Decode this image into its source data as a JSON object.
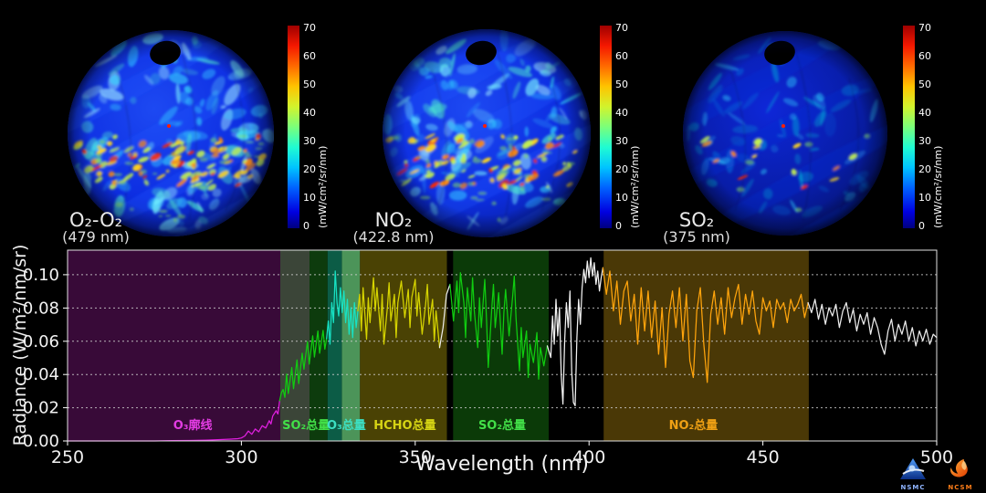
{
  "page": {
    "background": "#000000"
  },
  "globes": [
    {
      "label": "O₂-O₂",
      "sublabel": "(479 nm)",
      "seed": 7,
      "activity": 1.0
    },
    {
      "label": "NO₂",
      "sublabel": "(422.8 nm)",
      "seed": 13,
      "activity": 0.85
    },
    {
      "label": "SO₂",
      "sublabel": "(375 nm)",
      "seed": 21,
      "activity": 0.15
    }
  ],
  "colorbar": {
    "unit": "(mW/cm²/sr/nm)",
    "min": 0,
    "max": 70,
    "ticks": [
      "0",
      "10",
      "20",
      "30",
      "40",
      "50",
      "60",
      "70"
    ],
    "colormap": "jet"
  },
  "chart_data": {
    "type": "line",
    "title": "",
    "xlabel": "Wavelength (nm)",
    "ylabel": "Radiance (W/m²/nm/sr)",
    "xlim": [
      250,
      500
    ],
    "ylim": [
      0,
      0.1148
    ],
    "xticks": [
      250,
      300,
      350,
      400,
      450,
      500
    ],
    "ytick_values": [
      0,
      0.02,
      0.04,
      0.06,
      0.08,
      0.1
    ],
    "ytick_labels": [
      "0.00",
      "0.02",
      "0.04",
      "0.06",
      "0.08",
      "0.10"
    ],
    "grid": "horizontal-dashed",
    "legend": "none",
    "bands": [
      {
        "from": 250,
        "to": 311.2,
        "color": "#380a38",
        "label": "O₃廓线",
        "label_color": "#e23ce2",
        "label_at": 286
      },
      {
        "from": 311.2,
        "to": 319.6,
        "color": "#3b4538",
        "label": "SO₂总量",
        "label_color": "#42df48",
        "label_at": 318.6
      },
      {
        "from": 319.6,
        "to": 324.8,
        "color": "#0d3b0d",
        "label": "",
        "label_color": "",
        "label_at": 0
      },
      {
        "from": 324.8,
        "to": 328.9,
        "color": "#0c5c46",
        "label": "O₃总量",
        "label_color": "#3cdfc2",
        "label_at": 330.2
      },
      {
        "from": 328.9,
        "to": 334.1,
        "color": "#4c9459",
        "label": "",
        "label_color": "",
        "label_at": 0
      },
      {
        "from": 334.1,
        "to": 359.1,
        "color": "#4a4204",
        "label": "HCHO总量",
        "label_color": "#d6d414",
        "label_at": 347
      },
      {
        "from": 360.9,
        "to": 388.4,
        "color": "#0b3a08",
        "label": "SO₂总量",
        "label_color": "#42df48",
        "label_at": 375
      },
      {
        "from": 404.2,
        "to": 463.2,
        "color": "#4a3806",
        "label": "NO₂总量",
        "label_color": "#efa014",
        "label_at": 430
      }
    ],
    "line_segments": [
      {
        "to": 311.2,
        "color": "#e020e0"
      },
      {
        "to": 324.6,
        "color": "#10cc10"
      },
      {
        "to": 333.7,
        "color": "#17e2c4"
      },
      {
        "to": 357.5,
        "color": "#d6d400"
      },
      {
        "to": 360.6,
        "color": "#ececec"
      },
      {
        "to": 388.4,
        "color": "#10cc10"
      },
      {
        "to": 404.0,
        "color": "#f2f2f2"
      },
      {
        "to": 463.2,
        "color": "#ffa40c"
      },
      {
        "to": 500.0,
        "color": "#ececec"
      }
    ],
    "points": [
      [
        250,
        0
      ],
      [
        255,
        0
      ],
      [
        260,
        0
      ],
      [
        265,
        0
      ],
      [
        270,
        0
      ],
      [
        275,
        0
      ],
      [
        280,
        0.0002
      ],
      [
        285,
        0.0003
      ],
      [
        290,
        0.0005
      ],
      [
        294,
        0.0008
      ],
      [
        297,
        0.0011
      ],
      [
        299,
        0.0014
      ],
      [
        300,
        0.0018
      ],
      [
        301,
        0.003
      ],
      [
        302,
        0.006
      ],
      [
        303,
        0.004
      ],
      [
        304,
        0.0072
      ],
      [
        305,
        0.0055
      ],
      [
        306,
        0.0092
      ],
      [
        307,
        0.0078
      ],
      [
        308,
        0.0122
      ],
      [
        308.5,
        0.0102
      ],
      [
        309,
        0.015
      ],
      [
        310,
        0.0182
      ],
      [
        310.5,
        0.0162
      ],
      [
        311,
        0.0242
      ],
      [
        311.5,
        0.029
      ],
      [
        312,
        0.031
      ],
      [
        312.5,
        0.0262
      ],
      [
        313,
        0.0402
      ],
      [
        313.5,
        0.0285
      ],
      [
        314.5,
        0.0442
      ],
      [
        315,
        0.0315
      ],
      [
        316,
        0.0488
      ],
      [
        316.5,
        0.0345
      ],
      [
        317.5,
        0.0528
      ],
      [
        318,
        0.0432
      ],
      [
        319,
        0.0598
      ],
      [
        319.5,
        0.0462
      ],
      [
        320.5,
        0.0632
      ],
      [
        321,
        0.0505
      ],
      [
        322,
        0.0662
      ],
      [
        322.5,
        0.0528
      ],
      [
        323.5,
        0.0665
      ],
      [
        324,
        0.0552
      ],
      [
        324.5,
        0.0615
      ],
      [
        325,
        0.0722
      ],
      [
        325.5,
        0.0582
      ],
      [
        326,
        0.0832
      ],
      [
        326.5,
        0.0712
      ],
      [
        327,
        0.1022
      ],
      [
        327.5,
        0.0835
      ],
      [
        328,
        0.0752
      ],
      [
        328.5,
        0.0922
      ],
      [
        329,
        0.0772
      ],
      [
        329.5,
        0.0902
      ],
      [
        330,
        0.0712
      ],
      [
        330.5,
        0.0852
      ],
      [
        331,
        0.0642
      ],
      [
        331.5,
        0.0802
      ],
      [
        332,
        0.0622
      ],
      [
        332.5,
        0.0832
      ],
      [
        333,
        0.0682
      ],
      [
        333.5,
        0.0782
      ],
      [
        334,
        0.0882
      ],
      [
        334.5,
        0.0662
      ],
      [
        335,
        0.0922
      ],
      [
        336,
        0.0612
      ],
      [
        336.5,
        0.0862
      ],
      [
        337,
        0.0712
      ],
      [
        338,
        0.0982
      ],
      [
        338.5,
        0.0782
      ],
      [
        339,
        0.0922
      ],
      [
        340,
        0.0662
      ],
      [
        340.5,
        0.0882
      ],
      [
        341,
        0.0582
      ],
      [
        342,
        0.0802
      ],
      [
        342.5,
        0.0952
      ],
      [
        343,
        0.0722
      ],
      [
        344,
        0.0882
      ],
      [
        344.5,
        0.0622
      ],
      [
        345,
        0.0832
      ],
      [
        346,
        0.0962
      ],
      [
        347,
        0.0742
      ],
      [
        348,
        0.0912
      ],
      [
        348.5,
        0.0682
      ],
      [
        349,
        0.0862
      ],
      [
        350,
        0.0972
      ],
      [
        350.5,
        0.0752
      ],
      [
        351,
        0.0892
      ],
      [
        352,
        0.0642
      ],
      [
        353,
        0.0822
      ],
      [
        353.5,
        0.0942
      ],
      [
        354,
        0.0702
      ],
      [
        355,
        0.0852
      ],
      [
        355.5,
        0.0602
      ],
      [
        356,
        0.0782
      ],
      [
        357,
        0.0562
      ],
      [
        358,
        0.0682
      ],
      [
        359,
        0.0882
      ],
      [
        360,
        0.0942
      ],
      [
        361,
        0.0722
      ],
      [
        362,
        0.0962
      ],
      [
        362.5,
        0.0772
      ],
      [
        363,
        0.1012
      ],
      [
        364,
        0.0832
      ],
      [
        364.5,
        0.0622
      ],
      [
        365,
        0.0922
      ],
      [
        366,
        0.0722
      ],
      [
        366.5,
        0.0982
      ],
      [
        367,
        0.0782
      ],
      [
        368,
        0.0562
      ],
      [
        368.5,
        0.0862
      ],
      [
        369,
        0.0682
      ],
      [
        370,
        0.0972
      ],
      [
        370.5,
        0.0732
      ],
      [
        371,
        0.0442
      ],
      [
        372,
        0.0792
      ],
      [
        372.5,
        0.0942
      ],
      [
        373,
        0.0682
      ],
      [
        374,
        0.0892
      ],
      [
        375,
        0.0522
      ],
      [
        375.5,
        0.0772
      ],
      [
        376,
        0.0912
      ],
      [
        377,
        0.0632
      ],
      [
        378,
        0.0862
      ],
      [
        378.5,
        0.0992
      ],
      [
        379,
        0.0742
      ],
      [
        380,
        0.0422
      ],
      [
        380.5,
        0.0682
      ],
      [
        381,
        0.0502
      ],
      [
        382,
        0.0662
      ],
      [
        382.5,
        0.0382
      ],
      [
        383,
        0.0582
      ],
      [
        384,
        0.0472
      ],
      [
        385,
        0.0652
      ],
      [
        385.5,
        0.0372
      ],
      [
        386,
        0.0562
      ],
      [
        387,
        0.0452
      ],
      [
        388,
        0.0572
      ],
      [
        389,
        0.0502
      ],
      [
        389.5,
        0.0752
      ],
      [
        390,
        0.0582
      ],
      [
        390.5,
        0.0852
      ],
      [
        391,
        0.0632
      ],
      [
        391.5,
        0.0802
      ],
      [
        392,
        0.0402
      ],
      [
        392.5,
        0.0222
      ],
      [
        393,
        0.0602
      ],
      [
        393.5,
        0.0832
      ],
      [
        394,
        0.0682
      ],
      [
        394.5,
        0.0902
      ],
      [
        395,
        0.0422
      ],
      [
        395.5,
        0.0232
      ],
      [
        396,
        0.0212
      ],
      [
        396.5,
        0.0622
      ],
      [
        397,
        0.0852
      ],
      [
        397.5,
        0.0702
      ],
      [
        398,
        0.0922
      ],
      [
        398.5,
        0.1032
      ],
      [
        399,
        0.0952
      ],
      [
        399.5,
        0.1082
      ],
      [
        400,
        0.0982
      ],
      [
        400.5,
        0.1102
      ],
      [
        401,
        0.0992
      ],
      [
        401.5,
        0.1072
      ],
      [
        402,
        0.0942
      ],
      [
        402.5,
        0.1022
      ],
      [
        403,
        0.0902
      ],
      [
        403.5,
        0.0982
      ],
      [
        404,
        0.1042
      ],
      [
        405,
        0.0882
      ],
      [
        406,
        0.1022
      ],
      [
        407,
        0.0782
      ],
      [
        408,
        0.0962
      ],
      [
        409,
        0.0702
      ],
      [
        410,
        0.0902
      ],
      [
        411,
        0.0962
      ],
      [
        412,
        0.0722
      ],
      [
        413,
        0.0882
      ],
      [
        414,
        0.0582
      ],
      [
        415,
        0.0922
      ],
      [
        416,
        0.0662
      ],
      [
        417,
        0.0902
      ],
      [
        418,
        0.0622
      ],
      [
        419,
        0.0842
      ],
      [
        420,
        0.0522
      ],
      [
        421,
        0.0802
      ],
      [
        422,
        0.0442
      ],
      [
        423,
        0.0762
      ],
      [
        424,
        0.0902
      ],
      [
        425,
        0.0682
      ],
      [
        426,
        0.0922
      ],
      [
        427,
        0.0602
      ],
      [
        428,
        0.0882
      ],
      [
        429,
        0.0482
      ],
      [
        430,
        0.0382
      ],
      [
        431,
        0.0782
      ],
      [
        432,
        0.0922
      ],
      [
        433,
        0.0582
      ],
      [
        434,
        0.0352
      ],
      [
        435,
        0.0762
      ],
      [
        436,
        0.0902
      ],
      [
        437,
        0.0702
      ],
      [
        438,
        0.0862
      ],
      [
        439,
        0.0642
      ],
      [
        440,
        0.0922
      ],
      [
        441,
        0.0742
      ],
      [
        442,
        0.0862
      ],
      [
        443,
        0.0942
      ],
      [
        444,
        0.0702
      ],
      [
        445,
        0.0882
      ],
      [
        446,
        0.0762
      ],
      [
        447,
        0.0902
      ],
      [
        448,
        0.0722
      ],
      [
        449,
        0.0642
      ],
      [
        450,
        0.0862
      ],
      [
        451,
        0.0782
      ],
      [
        452,
        0.0842
      ],
      [
        453,
        0.0682
      ],
      [
        454,
        0.0852
      ],
      [
        455,
        0.0792
      ],
      [
        456,
        0.0832
      ],
      [
        457,
        0.0712
      ],
      [
        458,
        0.0852
      ],
      [
        459,
        0.0782
      ],
      [
        460,
        0.0822
      ],
      [
        461,
        0.0882
      ],
      [
        462,
        0.0742
      ],
      [
        463,
        0.0832
      ],
      [
        464,
        0.0772
      ],
      [
        465,
        0.0852
      ],
      [
        466,
        0.0732
      ],
      [
        467,
        0.0822
      ],
      [
        468,
        0.0702
      ],
      [
        469,
        0.0802
      ],
      [
        470,
        0.0752
      ],
      [
        471,
        0.0822
      ],
      [
        472,
        0.0682
      ],
      [
        473,
        0.0782
      ],
      [
        474,
        0.0832
      ],
      [
        475,
        0.0712
      ],
      [
        476,
        0.0792
      ],
      [
        477,
        0.0662
      ],
      [
        478,
        0.0762
      ],
      [
        479,
        0.0702
      ],
      [
        480,
        0.0772
      ],
      [
        481,
        0.0642
      ],
      [
        482,
        0.0742
      ],
      [
        483,
        0.0682
      ],
      [
        484,
        0.0582
      ],
      [
        485,
        0.0522
      ],
      [
        486,
        0.0662
      ],
      [
        487,
        0.0732
      ],
      [
        488,
        0.0602
      ],
      [
        489,
        0.0702
      ],
      [
        490,
        0.0642
      ],
      [
        491,
        0.0722
      ],
      [
        492,
        0.0602
      ],
      [
        493,
        0.0682
      ],
      [
        494,
        0.0572
      ],
      [
        495,
        0.0662
      ],
      [
        496,
        0.0602
      ],
      [
        497,
        0.0672
      ],
      [
        498,
        0.0582
      ],
      [
        499,
        0.0642
      ],
      [
        500,
        0.0622
      ]
    ]
  },
  "logos": [
    {
      "name": "NSMC",
      "text": "NSMC"
    },
    {
      "name": "NCSM",
      "text": "NCSM"
    }
  ]
}
